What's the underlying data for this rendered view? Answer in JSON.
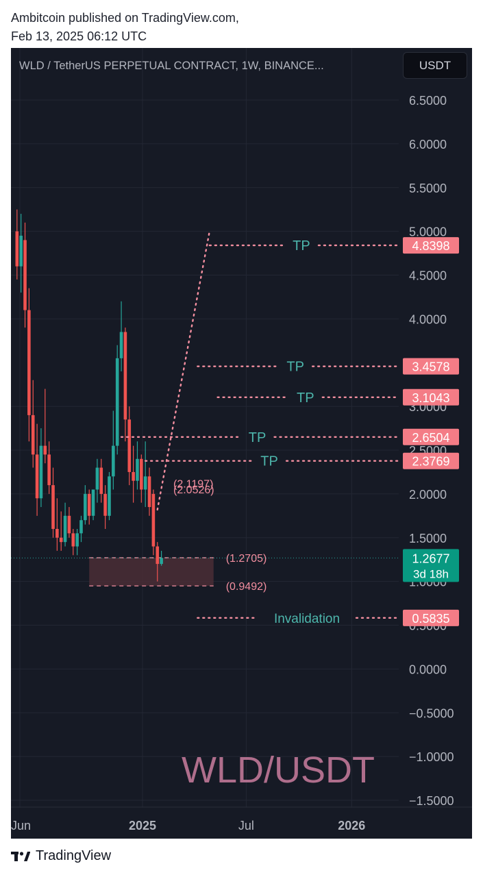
{
  "header": {
    "line1": "Ambitcoin published on TradingView.com,",
    "line2": "Feb 13, 2025 06:12 UTC"
  },
  "chart": {
    "symbol_title": "WLD / TetherUS PERPETUAL CONTRACT, 1W, BINANCE...",
    "currency_label": "USDT",
    "watermark": "WLD/USDT",
    "colors": {
      "background": "#161a25",
      "bull": "#26a69a",
      "bear": "#ef5350",
      "level_line": "#f48fa0",
      "tp_text": "#4db6ac",
      "tag_bg": "#f47c86",
      "current_price_bg": "#089981",
      "zone_fill": "#4a2e36",
      "watermark": "#c07898"
    }
  },
  "chart_data": {
    "type": "candlestick",
    "title": "WLD / TetherUS PERPETUAL CONTRACT, 1W, BINANCE...",
    "timeframe": "1W",
    "y_axis": {
      "ticks": [
        "6.5000",
        "6.0000",
        "5.5000",
        "5.0000",
        "4.5000",
        "4.0000",
        "3.0000",
        "2.5000",
        "2.0000",
        "1.5000",
        "1.0000",
        "0.5000",
        "0.0000",
        "−0.5000",
        "−1.0000",
        "−1.5000"
      ],
      "tick_values": [
        6.5,
        6.0,
        5.5,
        5.0,
        4.5,
        4.0,
        3.0,
        2.5,
        2.0,
        1.5,
        1.0,
        0.5,
        0.0,
        -0.5,
        -1.0,
        -1.5
      ],
      "range": [
        -1.5,
        6.5
      ]
    },
    "x_axis": {
      "ticks": [
        {
          "label": "Jun",
          "date": "2024-06-01",
          "bold": false
        },
        {
          "label": "2025",
          "date": "2025-01-01",
          "bold": true
        },
        {
          "label": "Jul",
          "date": "2025-07-01",
          "bold": false
        },
        {
          "label": "2026",
          "date": "2026-01-01",
          "bold": true
        }
      ],
      "range": [
        "2024-05-27",
        "2026-03-15"
      ]
    },
    "candles": [
      {
        "date": "2024-05-27",
        "open": 5.0,
        "high": 5.25,
        "low": 4.45,
        "close": 4.6
      },
      {
        "date": "2024-06-03",
        "open": 4.6,
        "high": 5.2,
        "low": 4.3,
        "close": 4.95
      },
      {
        "date": "2024-06-10",
        "open": 4.9,
        "high": 5.1,
        "low": 3.9,
        "close": 4.1
      },
      {
        "date": "2024-06-17",
        "open": 4.1,
        "high": 4.35,
        "low": 2.6,
        "close": 2.9
      },
      {
        "date": "2024-06-24",
        "open": 2.9,
        "high": 3.3,
        "low": 2.3,
        "close": 2.45
      },
      {
        "date": "2024-07-01",
        "open": 2.45,
        "high": 2.8,
        "low": 1.75,
        "close": 1.95
      },
      {
        "date": "2024-07-08",
        "open": 1.95,
        "high": 2.75,
        "low": 1.85,
        "close": 2.55
      },
      {
        "date": "2024-07-15",
        "open": 2.55,
        "high": 3.2,
        "low": 2.35,
        "close": 2.45
      },
      {
        "date": "2024-07-22",
        "open": 2.45,
        "high": 2.6,
        "low": 2.0,
        "close": 2.1
      },
      {
        "date": "2024-07-29",
        "open": 2.1,
        "high": 2.3,
        "low": 1.5,
        "close": 1.6
      },
      {
        "date": "2024-08-05",
        "open": 1.6,
        "high": 1.95,
        "low": 1.35,
        "close": 1.5
      },
      {
        "date": "2024-08-12",
        "open": 1.5,
        "high": 1.8,
        "low": 1.35,
        "close": 1.45
      },
      {
        "date": "2024-08-19",
        "open": 1.45,
        "high": 1.9,
        "low": 1.4,
        "close": 1.75
      },
      {
        "date": "2024-08-26",
        "open": 1.75,
        "high": 1.85,
        "low": 1.5,
        "close": 1.55
      },
      {
        "date": "2024-09-02",
        "open": 1.55,
        "high": 1.6,
        "low": 1.3,
        "close": 1.4
      },
      {
        "date": "2024-09-09",
        "open": 1.4,
        "high": 1.6,
        "low": 1.3,
        "close": 1.55
      },
      {
        "date": "2024-09-16",
        "open": 1.55,
        "high": 1.75,
        "low": 1.45,
        "close": 1.7
      },
      {
        "date": "2024-09-23",
        "open": 1.7,
        "high": 2.1,
        "low": 1.65,
        "close": 2.0
      },
      {
        "date": "2024-09-30",
        "open": 2.0,
        "high": 2.05,
        "low": 1.65,
        "close": 1.75
      },
      {
        "date": "2024-10-07",
        "open": 1.75,
        "high": 2.05,
        "low": 1.7,
        "close": 2.05
      },
      {
        "date": "2024-10-14",
        "open": 2.05,
        "high": 2.4,
        "low": 1.9,
        "close": 2.3
      },
      {
        "date": "2024-10-21",
        "open": 2.3,
        "high": 2.4,
        "low": 1.9,
        "close": 2.0
      },
      {
        "date": "2024-10-28",
        "open": 2.0,
        "high": 2.1,
        "low": 1.6,
        "close": 1.75
      },
      {
        "date": "2024-11-04",
        "open": 1.75,
        "high": 2.25,
        "low": 1.7,
        "close": 2.2
      },
      {
        "date": "2024-11-11",
        "open": 2.2,
        "high": 2.95,
        "low": 2.05,
        "close": 2.55
      },
      {
        "date": "2024-11-18",
        "open": 2.55,
        "high": 3.7,
        "low": 2.45,
        "close": 3.55
      },
      {
        "date": "2024-11-25",
        "open": 3.55,
        "high": 4.2,
        "low": 3.4,
        "close": 3.85
      },
      {
        "date": "2024-12-02",
        "open": 3.85,
        "high": 3.9,
        "low": 2.6,
        "close": 2.85
      },
      {
        "date": "2024-12-09",
        "open": 2.85,
        "high": 3.0,
        "low": 2.1,
        "close": 2.25
      },
      {
        "date": "2024-12-16",
        "open": 2.25,
        "high": 2.55,
        "low": 1.9,
        "close": 2.15
      },
      {
        "date": "2024-12-23",
        "open": 2.15,
        "high": 2.6,
        "low": 2.05,
        "close": 2.4
      },
      {
        "date": "2024-12-30",
        "open": 2.4,
        "high": 2.45,
        "low": 1.9,
        "close": 2.05
      },
      {
        "date": "2025-01-06",
        "open": 2.05,
        "high": 2.6,
        "low": 1.85,
        "close": 2.2
      },
      {
        "date": "2025-01-13",
        "open": 2.2,
        "high": 2.3,
        "low": 1.75,
        "close": 1.85
      },
      {
        "date": "2025-01-20",
        "open": 2.0,
        "high": 2.05,
        "low": 1.3,
        "close": 1.4
      },
      {
        "date": "2025-01-27",
        "open": 1.4,
        "high": 1.45,
        "low": 1.0,
        "close": 1.2
      },
      {
        "date": "2025-02-03",
        "open": 1.2,
        "high": 1.35,
        "low": 1.18,
        "close": 1.2677
      }
    ],
    "current_price": {
      "value": 1.2677,
      "label": "1.2677",
      "countdown": "3d 18h"
    },
    "zone": {
      "top": 1.2705,
      "bottom": 0.9492,
      "from": "2024-09-30",
      "to": "2025-05-05",
      "top_label": "(1.2705)",
      "bottom_label": "(0.9492)"
    },
    "small_labels": [
      {
        "text": "(2.1197)",
        "value": 2.1197
      },
      {
        "text": "(2.0526)",
        "value": 2.0526
      }
    ],
    "projection": [
      {
        "date": "2025-01-27",
        "value": 1.82
      },
      {
        "date": "2025-04-28",
        "value": 5.0
      }
    ],
    "levels": [
      {
        "price": 4.8398,
        "tag": "4.8398",
        "text": "TP",
        "from": "2025-04-28"
      },
      {
        "price": 3.4578,
        "tag": "3.4578",
        "text": "TP",
        "from": "2025-04-07"
      },
      {
        "price": 3.1043,
        "tag": "3.1043",
        "text": "TP",
        "from": "2025-05-12"
      },
      {
        "price": 2.6504,
        "tag": "2.6504",
        "text": "TP",
        "from": "2024-11-25"
      },
      {
        "price": 2.3769,
        "tag": "2.3769",
        "text": "TP",
        "from": "2025-01-06"
      },
      {
        "price": 0.5835,
        "tag": "0.5835",
        "text": "Invalidation",
        "from": "2025-04-07"
      }
    ]
  },
  "footer": {
    "brand": "TradingView"
  }
}
